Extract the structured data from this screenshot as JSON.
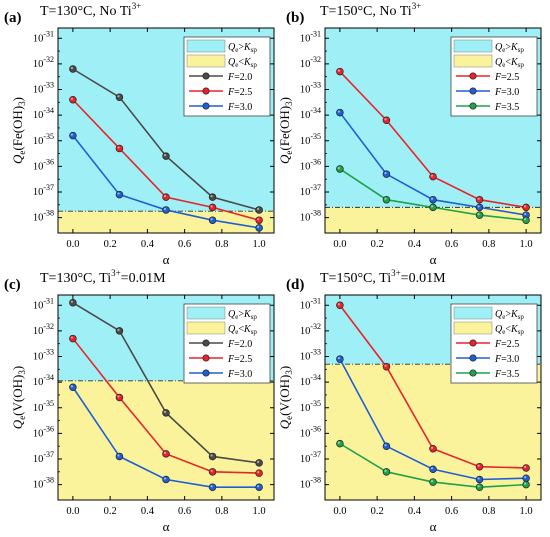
{
  "colors": {
    "cyan_region": "#9ff0f6",
    "yellow_region": "#faf39b",
    "threshold_line": "#333333",
    "series": {
      "F=2.0": "#4a4a4a",
      "F=2.5": "#e8242a",
      "F=3.0": "#1f5fd6",
      "F=3.5": "#1ea24a"
    }
  },
  "chart_data": [
    {
      "type": "line",
      "panel_letter": "(a)",
      "title": {
        "text": "T=130°C, No Ti",
        "sup": "3+"
      },
      "ylabel": {
        "main": "Q",
        "sub": "e",
        "rest": "(Fe(OH)",
        "sub2": "3",
        "end": ")"
      },
      "xlabel": "α",
      "ylim_log10": [
        -38.6,
        -30.6
      ],
      "xlim": [
        -0.08,
        1.08
      ],
      "xticks": [
        0.0,
        0.2,
        0.4,
        0.6,
        0.8,
        1.0
      ],
      "xtick_labels": [
        "0.0",
        "0.2",
        "0.4",
        "0.6",
        "0.8",
        "1.0"
      ],
      "ytick_exps": [
        -38,
        -37,
        -36,
        -35,
        -34,
        -33,
        -32,
        -31
      ],
      "ytick_labels": [
        "-38",
        "-37",
        "-36",
        "-35",
        "-34",
        "-33",
        "-32",
        "-31"
      ],
      "threshold_log10": -37.75,
      "legend": {
        "regions": [
          {
            "label": "Qe>Ksp",
            "q": "Q",
            "qsub": "e",
            "op": ">",
            "k": "K",
            "ksub": "sp",
            "color_key": "cyan_region"
          },
          {
            "label": "Qe<Ksp",
            "q": "Q",
            "qsub": "e",
            "op": "<",
            "k": "K",
            "ksub": "sp",
            "color_key": "yellow_region"
          }
        ]
      },
      "x": [
        0.0,
        0.25,
        0.5,
        0.75,
        1.0
      ],
      "series": [
        {
          "name": "F=2.0",
          "values_log10": [
            -32.2,
            -33.3,
            -35.6,
            -37.2,
            -37.7
          ]
        },
        {
          "name": "F=2.5",
          "values_log10": [
            -33.4,
            -35.3,
            -37.2,
            -37.6,
            -38.1
          ]
        },
        {
          "name": "F=3.0",
          "values_log10": [
            -34.8,
            -37.1,
            -37.7,
            -38.1,
            -38.4
          ]
        }
      ]
    },
    {
      "type": "line",
      "panel_letter": "(b)",
      "title": {
        "text": "T=150°C, No Ti",
        "sup": "3+"
      },
      "ylabel": {
        "main": "Q",
        "sub": "e",
        "rest": "(Fe(OH)",
        "sub2": "3",
        "end": ")"
      },
      "xlabel": "α",
      "ylim_log10": [
        -38.6,
        -30.6
      ],
      "xlim": [
        -0.08,
        1.08
      ],
      "xticks": [
        0.0,
        0.2,
        0.4,
        0.6,
        0.8,
        1.0
      ],
      "xtick_labels": [
        "0.0",
        "0.2",
        "0.4",
        "0.6",
        "0.8",
        "1.0"
      ],
      "ytick_exps": [
        -38,
        -37,
        -36,
        -35,
        -34,
        -33,
        -32,
        -31
      ],
      "ytick_labels": [
        "-38",
        "-37",
        "-36",
        "-35",
        "-34",
        "-33",
        "-32",
        "-31"
      ],
      "threshold_log10": -37.6,
      "legend": {
        "regions": [
          {
            "label": "Qe>Ksp",
            "q": "Q",
            "qsub": "e",
            "op": ">",
            "k": "K",
            "ksub": "sp",
            "color_key": "cyan_region"
          },
          {
            "label": "Qe<Ksp",
            "q": "Q",
            "qsub": "e",
            "op": "<",
            "k": "K",
            "ksub": "sp",
            "color_key": "yellow_region"
          }
        ]
      },
      "x": [
        0.0,
        0.25,
        0.5,
        0.75,
        1.0
      ],
      "series": [
        {
          "name": "F=2.5",
          "values_log10": [
            -32.3,
            -34.2,
            -36.4,
            -37.3,
            -37.6
          ]
        },
        {
          "name": "F=3.0",
          "values_log10": [
            -33.9,
            -36.3,
            -37.3,
            -37.6,
            -37.9
          ]
        },
        {
          "name": "F=3.5",
          "values_log10": [
            -36.1,
            -37.3,
            -37.6,
            -37.9,
            -38.1
          ]
        }
      ]
    },
    {
      "type": "line",
      "panel_letter": "(c)",
      "title": {
        "text": "T=130°C, Ti",
        "sup": "3+",
        "after": "=0.01M"
      },
      "ylabel": {
        "main": "Q",
        "sub": "e",
        "rest": "(V(OH)",
        "sub2": "3",
        "end": ")"
      },
      "xlabel": "α",
      "ylim_log10": [
        -38.6,
        -30.6
      ],
      "xlim": [
        -0.08,
        1.08
      ],
      "xticks": [
        0.0,
        0.2,
        0.4,
        0.6,
        0.8,
        1.0
      ],
      "xtick_labels": [
        "0.0",
        "0.2",
        "0.4",
        "0.6",
        "0.8",
        "1.0"
      ],
      "ytick_exps": [
        -38,
        -37,
        -36,
        -35,
        -34,
        -33,
        -32,
        -31
      ],
      "ytick_labels": [
        "-38",
        "-37",
        "-36",
        "-35",
        "-34",
        "-33",
        "-32",
        "-31"
      ],
      "threshold_log10": -33.95,
      "legend": {
        "regions": [
          {
            "label": "Qe>Ksp",
            "q": "Q",
            "qsub": "e",
            "op": ">",
            "k": "K",
            "ksub": "sp",
            "color_key": "cyan_region"
          },
          {
            "label": "Qe<Ksp",
            "q": "Q",
            "qsub": "e",
            "op": "<",
            "k": "K",
            "ksub": "sp",
            "color_key": "yellow_region"
          }
        ]
      },
      "x": [
        0.0,
        0.25,
        0.5,
        0.75,
        1.0
      ],
      "series": [
        {
          "name": "F=2.0",
          "values_log10": [
            -30.9,
            -32.0,
            -35.2,
            -36.9,
            -37.15
          ]
        },
        {
          "name": "F=2.5",
          "values_log10": [
            -32.3,
            -34.6,
            -36.8,
            -37.5,
            -37.55
          ]
        },
        {
          "name": "F=3.0",
          "values_log10": [
            -34.2,
            -36.9,
            -37.8,
            -38.1,
            -38.1
          ]
        }
      ]
    },
    {
      "type": "line",
      "panel_letter": "(d)",
      "title": {
        "text": "T=150°C, Ti",
        "sup": "3+",
        "after": "=0.01M"
      },
      "ylabel": {
        "main": "Q",
        "sub": "e",
        "rest": "(V(OH)",
        "sub2": "3",
        "end": ")"
      },
      "xlabel": "α",
      "ylim_log10": [
        -38.6,
        -30.6
      ],
      "xlim": [
        -0.08,
        1.08
      ],
      "xticks": [
        0.0,
        0.2,
        0.4,
        0.6,
        0.8,
        1.0
      ],
      "xtick_labels": [
        "0.0",
        "0.2",
        "0.4",
        "0.6",
        "0.8",
        "1.0"
      ],
      "ytick_exps": [
        -38,
        -37,
        -36,
        -35,
        -34,
        -33,
        -32,
        -31
      ],
      "ytick_labels": [
        "-38",
        "-37",
        "-36",
        "-35",
        "-34",
        "-33",
        "-32",
        "-31"
      ],
      "threshold_log10": -33.3,
      "legend": {
        "regions": [
          {
            "label": "Qe>Ksp",
            "q": "Q",
            "qsub": "e",
            "op": ">",
            "k": "K",
            "ksub": "sp",
            "color_key": "cyan_region"
          },
          {
            "label": "Qe<Ksp",
            "q": "Q",
            "qsub": "e",
            "op": "<",
            "k": "K",
            "ksub": "sp",
            "color_key": "yellow_region"
          }
        ]
      },
      "x": [
        0.0,
        0.25,
        0.5,
        0.75,
        1.0
      ],
      "series": [
        {
          "name": "F=2.5",
          "values_log10": [
            -31.0,
            -33.4,
            -36.6,
            -37.3,
            -37.35
          ]
        },
        {
          "name": "F=3.0",
          "values_log10": [
            -33.1,
            -36.5,
            -37.4,
            -37.8,
            -37.75
          ]
        },
        {
          "name": "F=3.5",
          "values_log10": [
            -36.4,
            -37.5,
            -37.9,
            -38.1,
            -38.0
          ]
        }
      ]
    }
  ]
}
